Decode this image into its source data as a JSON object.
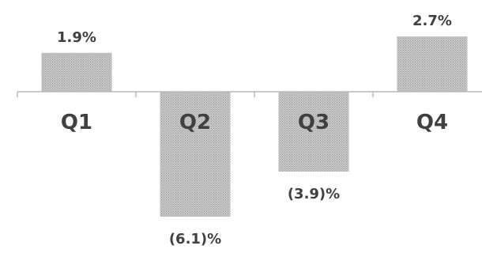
{
  "chart_data": {
    "type": "bar",
    "categories": [
      "Q1",
      "Q2",
      "Q3",
      "Q4"
    ],
    "values": [
      1.9,
      -6.1,
      -3.9,
      2.7
    ],
    "data_labels": [
      "1.9%",
      "(6.1)%",
      "(3.9)%",
      "2.7%"
    ],
    "title": "",
    "xlabel": "",
    "ylabel": "",
    "ylim": [
      -6.1,
      2.7
    ],
    "grid": false,
    "legend": "none",
    "colors": {
      "bar_fill": "#c8c8c8",
      "bar_pattern": "#9a9a9a",
      "axis": "#b8b8b8",
      "label": "#404040"
    }
  }
}
